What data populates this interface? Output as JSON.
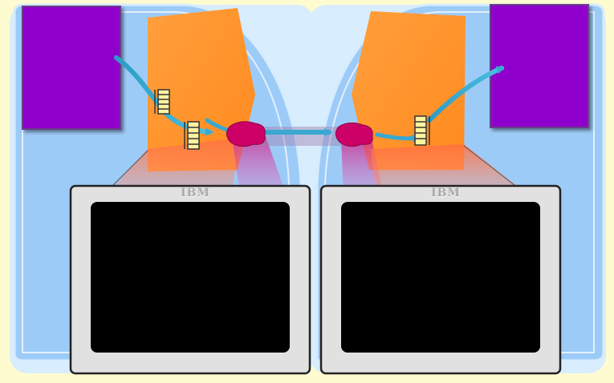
{
  "monitors": {
    "left": {
      "brand": "IBM"
    },
    "right": {
      "brand": "IBM"
    }
  },
  "colors": {
    "background": "#fffbd0",
    "host_panel": "#9dcbf8",
    "host_panel_border": "#d6ecfd",
    "application_box": "#9000cc",
    "process_window": "#ff9a33",
    "network_node": "#cc0066",
    "data_arrow": "#33aacc",
    "monitor_bezel": "#e1e1e1",
    "monitor_screen": "#000000"
  },
  "icons": [
    "message-queue-icon",
    "data-flow-arrow-icon",
    "network-connector-icon",
    "crt-monitor-icon"
  ]
}
